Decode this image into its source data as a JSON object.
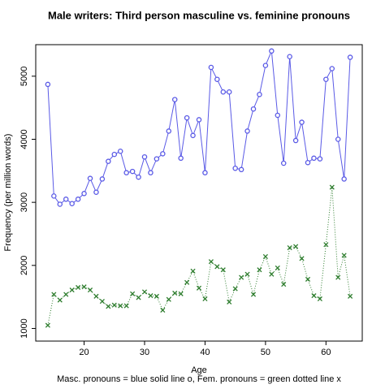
{
  "chart_data": {
    "type": "line",
    "title": "Male writers: Third person masculine vs. feminine pronouns",
    "xlabel": "Age",
    "ylabel": "Frequency (per million words)",
    "caption": "Masc. pronouns = blue solid line o, Fem. pronouns = green dotted line x",
    "x": [
      14,
      15,
      16,
      17,
      18,
      19,
      20,
      21,
      22,
      23,
      24,
      25,
      26,
      27,
      28,
      29,
      30,
      31,
      32,
      33,
      34,
      35,
      36,
      37,
      38,
      39,
      40,
      41,
      42,
      43,
      44,
      45,
      46,
      47,
      48,
      49,
      50,
      51,
      52,
      53,
      54,
      55,
      56,
      57,
      58,
      59,
      60,
      61,
      62,
      63,
      64
    ],
    "series": [
      {
        "color": "#5a5ae6",
        "line": "solid",
        "marker": "o",
        "values": [
          4870,
          3100,
          2970,
          3050,
          2980,
          3050,
          3140,
          3380,
          3160,
          3370,
          3650,
          3760,
          3810,
          3470,
          3490,
          3400,
          3720,
          3470,
          3690,
          3770,
          4130,
          4630,
          3700,
          4340,
          4060,
          4310,
          3470,
          5140,
          4950,
          4750,
          4750,
          3540,
          3520,
          4130,
          4480,
          4710,
          5170,
          5400,
          4380,
          3620,
          5310,
          3980,
          4270,
          3630,
          3700,
          3690,
          4950,
          5120,
          4000,
          3370,
          5300
        ]
      },
      {
        "color": "#2e7d2e",
        "line": "dotted",
        "marker": "x",
        "values": [
          1050,
          1540,
          1450,
          1540,
          1610,
          1650,
          1660,
          1610,
          1510,
          1430,
          1350,
          1370,
          1360,
          1360,
          1550,
          1490,
          1580,
          1520,
          1510,
          1290,
          1460,
          1560,
          1550,
          1730,
          1910,
          1640,
          1470,
          2060,
          1980,
          1930,
          1420,
          1630,
          1810,
          1860,
          1540,
          1930,
          2140,
          1860,
          1960,
          1700,
          2280,
          2300,
          2110,
          1780,
          1520,
          1470,
          2330,
          3240,
          1810,
          2160,
          1510
        ]
      }
    ],
    "xlim": [
      12,
      66
    ],
    "xticks": [
      20,
      30,
      40,
      50,
      60
    ],
    "ylim": [
      800,
      5500
    ],
    "yticks": [
      1000,
      2000,
      3000,
      4000,
      5000
    ]
  }
}
